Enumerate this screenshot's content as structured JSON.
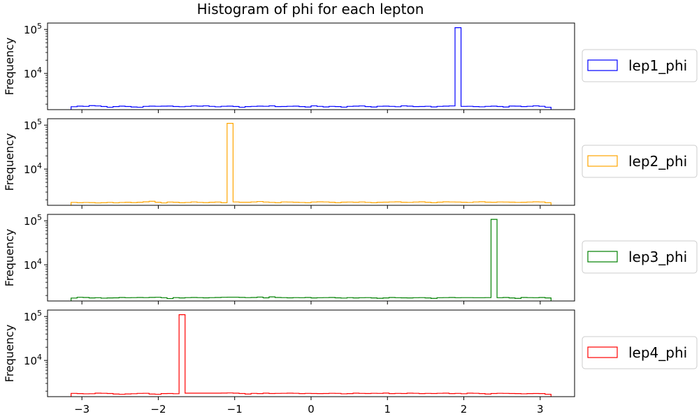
{
  "chart_data": {
    "type": "histogram",
    "title": "Histogram of phi for each lepton",
    "ylabel": "Frequency",
    "xlabel": "",
    "yscale": "log",
    "xlim": [
      -3.45,
      3.45
    ],
    "ylim": [
      1500,
      140000
    ],
    "x_ticks": [
      -3,
      -2,
      -1,
      0,
      1,
      2,
      3
    ],
    "x_tick_labels": [
      "−3",
      "−2",
      "−1",
      "0",
      "1",
      "2",
      "3"
    ],
    "y_ticks": [
      10000,
      100000
    ],
    "y_tick_labels": [
      [
        "10",
        "4"
      ],
      [
        "10",
        "5"
      ]
    ],
    "legend_placement": "right, outside each panel",
    "bins": 80,
    "range": [
      -3.1416,
      3.1416
    ],
    "series": [
      {
        "name": "lep1_phi",
        "color": "#0000ff",
        "spike_bin": 64,
        "spike_value": 110000,
        "values": [
          1750,
          1800,
          1780,
          1850,
          1820,
          1770,
          1700,
          1760,
          1800,
          1770,
          1720,
          1700,
          1780,
          1800,
          1790,
          1800,
          1810,
          1770,
          1750,
          1780,
          1820,
          1800,
          1830,
          1780,
          1740,
          1790,
          1800,
          1770,
          1700,
          1760,
          1780,
          1800,
          1790,
          1830,
          1760,
          1770,
          1790,
          1800,
          1760,
          1720,
          1830,
          1780,
          1730,
          1780,
          1760,
          1710,
          1780,
          1800,
          1820,
          1760,
          1720,
          1790,
          1800,
          1780,
          1750,
          1830,
          1800,
          1760,
          1770,
          1790,
          1730,
          1780,
          1800,
          1820,
          110000,
          1780,
          1790,
          1760,
          1740,
          1780,
          1800,
          1770,
          1720,
          1810,
          1800,
          1760,
          1790,
          1830,
          1790,
          1700
        ]
      },
      {
        "name": "lep2_phi",
        "color": "#ffa500",
        "spike_bin": 26,
        "spike_value": 110000,
        "values": [
          1750,
          1720,
          1740,
          1730,
          1700,
          1720,
          1750,
          1710,
          1740,
          1760,
          1730,
          1760,
          1800,
          1850,
          1760,
          1700,
          1780,
          1760,
          1720,
          1740,
          1790,
          1750,
          1730,
          1760,
          1780,
          1720,
          110000,
          1790,
          1760,
          1760,
          1790,
          1830,
          1780,
          1750,
          1720,
          1790,
          1780,
          1760,
          1740,
          1720,
          1780,
          1800,
          1790,
          1760,
          1720,
          1770,
          1780,
          1760,
          1790,
          1750,
          1720,
          1760,
          1770,
          1790,
          1800,
          1760,
          1750,
          1780,
          1800,
          1760,
          1720,
          1770,
          1800,
          1790,
          1780,
          1760,
          1740,
          1790,
          1810,
          1770,
          1760,
          1790,
          1780,
          1770,
          1750,
          1760,
          1780,
          1800,
          1790,
          1720
        ]
      },
      {
        "name": "lep3_phi",
        "color": "#008000",
        "spike_bin": 70,
        "spike_value": 108000,
        "values": [
          1750,
          1820,
          1800,
          1760,
          1780,
          1740,
          1760,
          1770,
          1800,
          1780,
          1790,
          1800,
          1790,
          1810,
          1820,
          1780,
          1700,
          1790,
          1760,
          1790,
          1800,
          1790,
          1770,
          1790,
          1800,
          1820,
          1830,
          1830,
          1810,
          1790,
          1800,
          1840,
          1770,
          1860,
          1800,
          1790,
          1770,
          1790,
          1780,
          1800,
          1760,
          1780,
          1790,
          1800,
          1770,
          1750,
          1790,
          1760,
          1780,
          1790,
          1760,
          1730,
          1760,
          1800,
          1780,
          1770,
          1760,
          1780,
          1790,
          1760,
          1720,
          1780,
          1790,
          1800,
          1780,
          1790,
          1790,
          1780,
          1780,
          1790,
          108000,
          1780,
          1800,
          1760,
          1720,
          1800,
          1790,
          1780,
          1800,
          1760
        ]
      },
      {
        "name": "lep4_phi",
        "color": "#ff0000",
        "spike_bin": 18,
        "spike_value": 110000,
        "values": [
          1780,
          1760,
          1740,
          1750,
          1800,
          1790,
          1770,
          1720,
          1700,
          1730,
          1750,
          1780,
          1790,
          1720,
          1700,
          1760,
          1770,
          1750,
          110000,
          1800,
          1800,
          1800,
          1800,
          1800,
          1800,
          1810,
          1820,
          1800,
          1770,
          1720,
          1780,
          1760,
          1800,
          1770,
          1780,
          1790,
          1800,
          1790,
          1760,
          1780,
          1770,
          1760,
          1770,
          1790,
          1780,
          1740,
          1760,
          1800,
          1780,
          1770,
          1790,
          1780,
          1810,
          1760,
          1780,
          1770,
          1800,
          1790,
          1760,
          1780,
          1770,
          1790,
          1800,
          1760,
          1780,
          1750,
          1800,
          1790,
          1760,
          1720,
          1770,
          1790,
          1780,
          1770,
          1760,
          1740,
          1760,
          1770,
          1760,
          1700
        ]
      }
    ]
  }
}
